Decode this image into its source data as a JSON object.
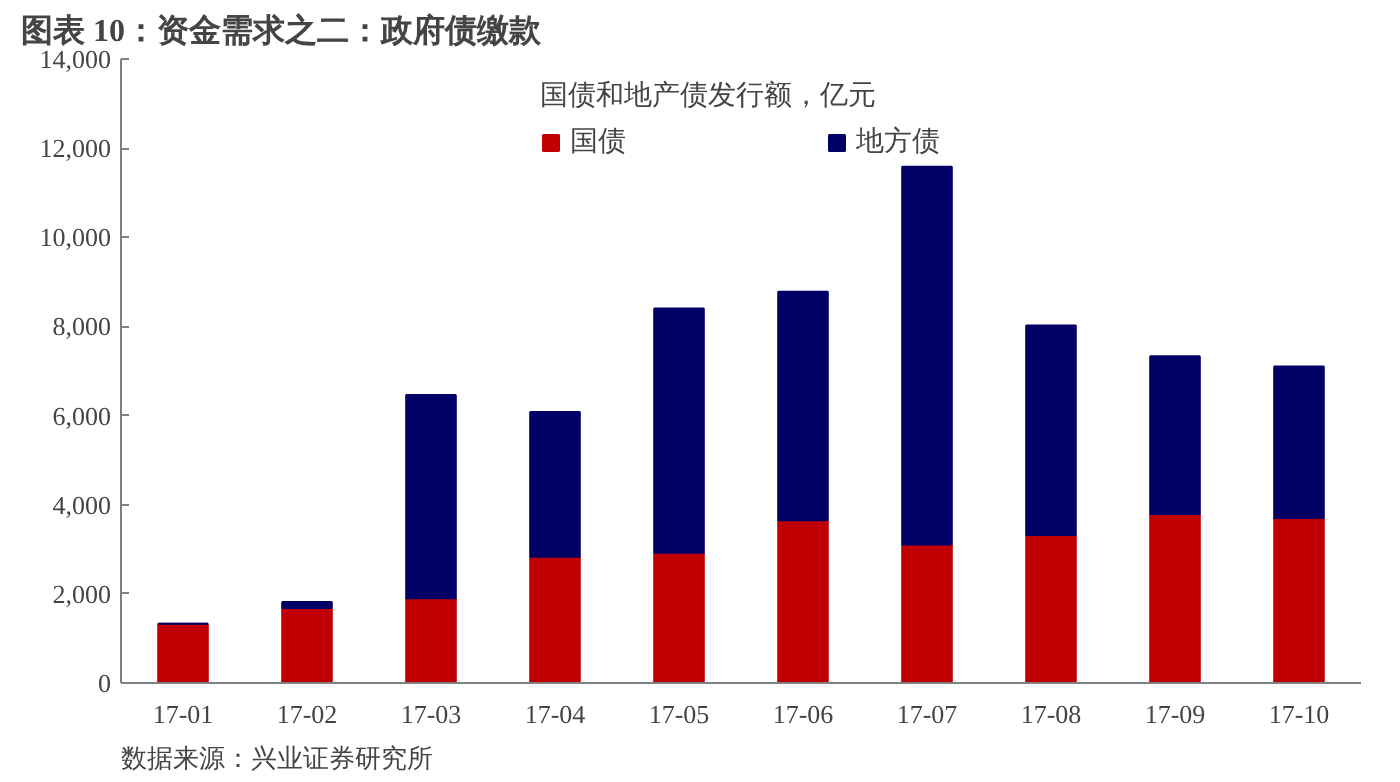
{
  "chart_data": {
    "type": "bar",
    "title": "图表 10：资金需求之二：政府债缴款",
    "legend_title": "国债和地产债发行额，亿元",
    "annotations": [
      "数据来源：兴业证券研究所"
    ],
    "categories": [
      "17-01",
      "17-02",
      "17-03",
      "17-04",
      "17-05",
      "17-06",
      "17-07",
      "17-08",
      "17-09",
      "17-10"
    ],
    "stacked": true,
    "series": [
      {
        "name": "国债",
        "color": "#c00000",
        "values": [
          1330,
          1680,
          1900,
          2830,
          2920,
          3650,
          3110,
          3320,
          3790,
          3700
        ]
      },
      {
        "name": "地方债",
        "color": "#000066",
        "values": [
          0,
          135,
          4560,
          3250,
          5480,
          5130,
          8470,
          4700,
          3540,
          3400
        ]
      }
    ],
    "ylim": [
      0,
      14000
    ],
    "yticks": [
      0,
      {
        "value": 2000,
        "label": "2,000"
      },
      {
        "value": 4000,
        "label": "4,000"
      },
      {
        "value": 6000,
        "label": "6,000"
      },
      {
        "value": 8000,
        "label": "8,000"
      },
      {
        "value": 10000,
        "label": "10,000"
      },
      {
        "value": 12000,
        "label": "12,000"
      },
      {
        "value": 14000,
        "label": "14,000"
      }
    ],
    "grid": false,
    "legend": "top"
  }
}
